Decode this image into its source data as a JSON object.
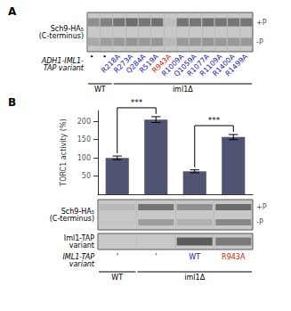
{
  "chart_data": [
    {
      "type": "gel",
      "title": "A",
      "categories": [
        "•",
        "•",
        "R218A",
        "R273A",
        "Q284A",
        "R519A",
        "R943A",
        "R1009A",
        "Q1059A",
        "R1077A",
        "R1109A",
        "R1400A",
        "R1499A"
      ],
      "label_colors": [
        "#000000",
        "#000000",
        "#1a1aaa",
        "#1a1aaa",
        "#1a1aaa",
        "#1a1aaa",
        "#cc2200",
        "#1a1aaa",
        "#1a1aaa",
        "#1a1aaa",
        "#1a1aaa",
        "#1a1aaa",
        "#1a1aaa"
      ],
      "rows": [
        "+P",
        "-P"
      ],
      "cells": [
        [
          0.55,
          0.62,
          0.68,
          0.72,
          0.67,
          0.7,
          0.32,
          0.68,
          0.67,
          0.7,
          0.67,
          0.67,
          0.67
        ],
        [
          0.42,
          0.48,
          0.5,
          0.52,
          0.5,
          0.52,
          0.35,
          0.5,
          0.5,
          0.52,
          0.5,
          0.5,
          0.5
        ]
      ],
      "color": "#c8c8c8",
      "ylabel": "Sch9-HA₅\n(C-terminus)",
      "xlabel": "ADH1-IML1-\nTAP variant",
      "groups": [
        {
          "label": "WT",
          "lanes": 2
        },
        {
          "label": "iml1Δ",
          "lanes": 11
        }
      ]
    },
    {
      "type": "bar",
      "title": "B",
      "categories": [
        "'",
        "'",
        "WT",
        "R943A"
      ],
      "label_colors": [
        "#000000",
        "#000000",
        "#1a1aaa",
        "#cc2200"
      ],
      "values": [
        100,
        205,
        63,
        157
      ],
      "errors": [
        5,
        8,
        4,
        7
      ],
      "ylabel": "TORC1 activity (%)",
      "ylim": [
        0,
        230
      ],
      "yticks": [
        50,
        100,
        150,
        200
      ],
      "tick_labels": "y",
      "grid": false,
      "significance": [
        {
          "bars": [
            0,
            1
          ],
          "label": "***"
        },
        {
          "bars": [
            2,
            3
          ],
          "label": "***"
        }
      ],
      "gels": [
        {
          "rows": [
            "+P",
            "-P"
          ],
          "cells": [
            [
              0.35,
              0.68,
              0.55,
              0.72
            ],
            [
              0.28,
              0.48,
              0.38,
              0.58
            ]
          ],
          "color": "#c8c8c8",
          "ylabel": "Sch9-HA₅\n(C-terminus)"
        },
        {
          "cells": [
            [
              0.0,
              0.0,
              0.8,
              0.65
            ]
          ],
          "color": "#c8c8c8",
          "ylabel": "Iml1-TAP\nvariant"
        }
      ],
      "xlabel": "IML1-TAP\nvariant",
      "groups": [
        {
          "label": "WT",
          "lanes": 1
        },
        {
          "label": "iml1Δ",
          "lanes": 3
        }
      ]
    }
  ]
}
